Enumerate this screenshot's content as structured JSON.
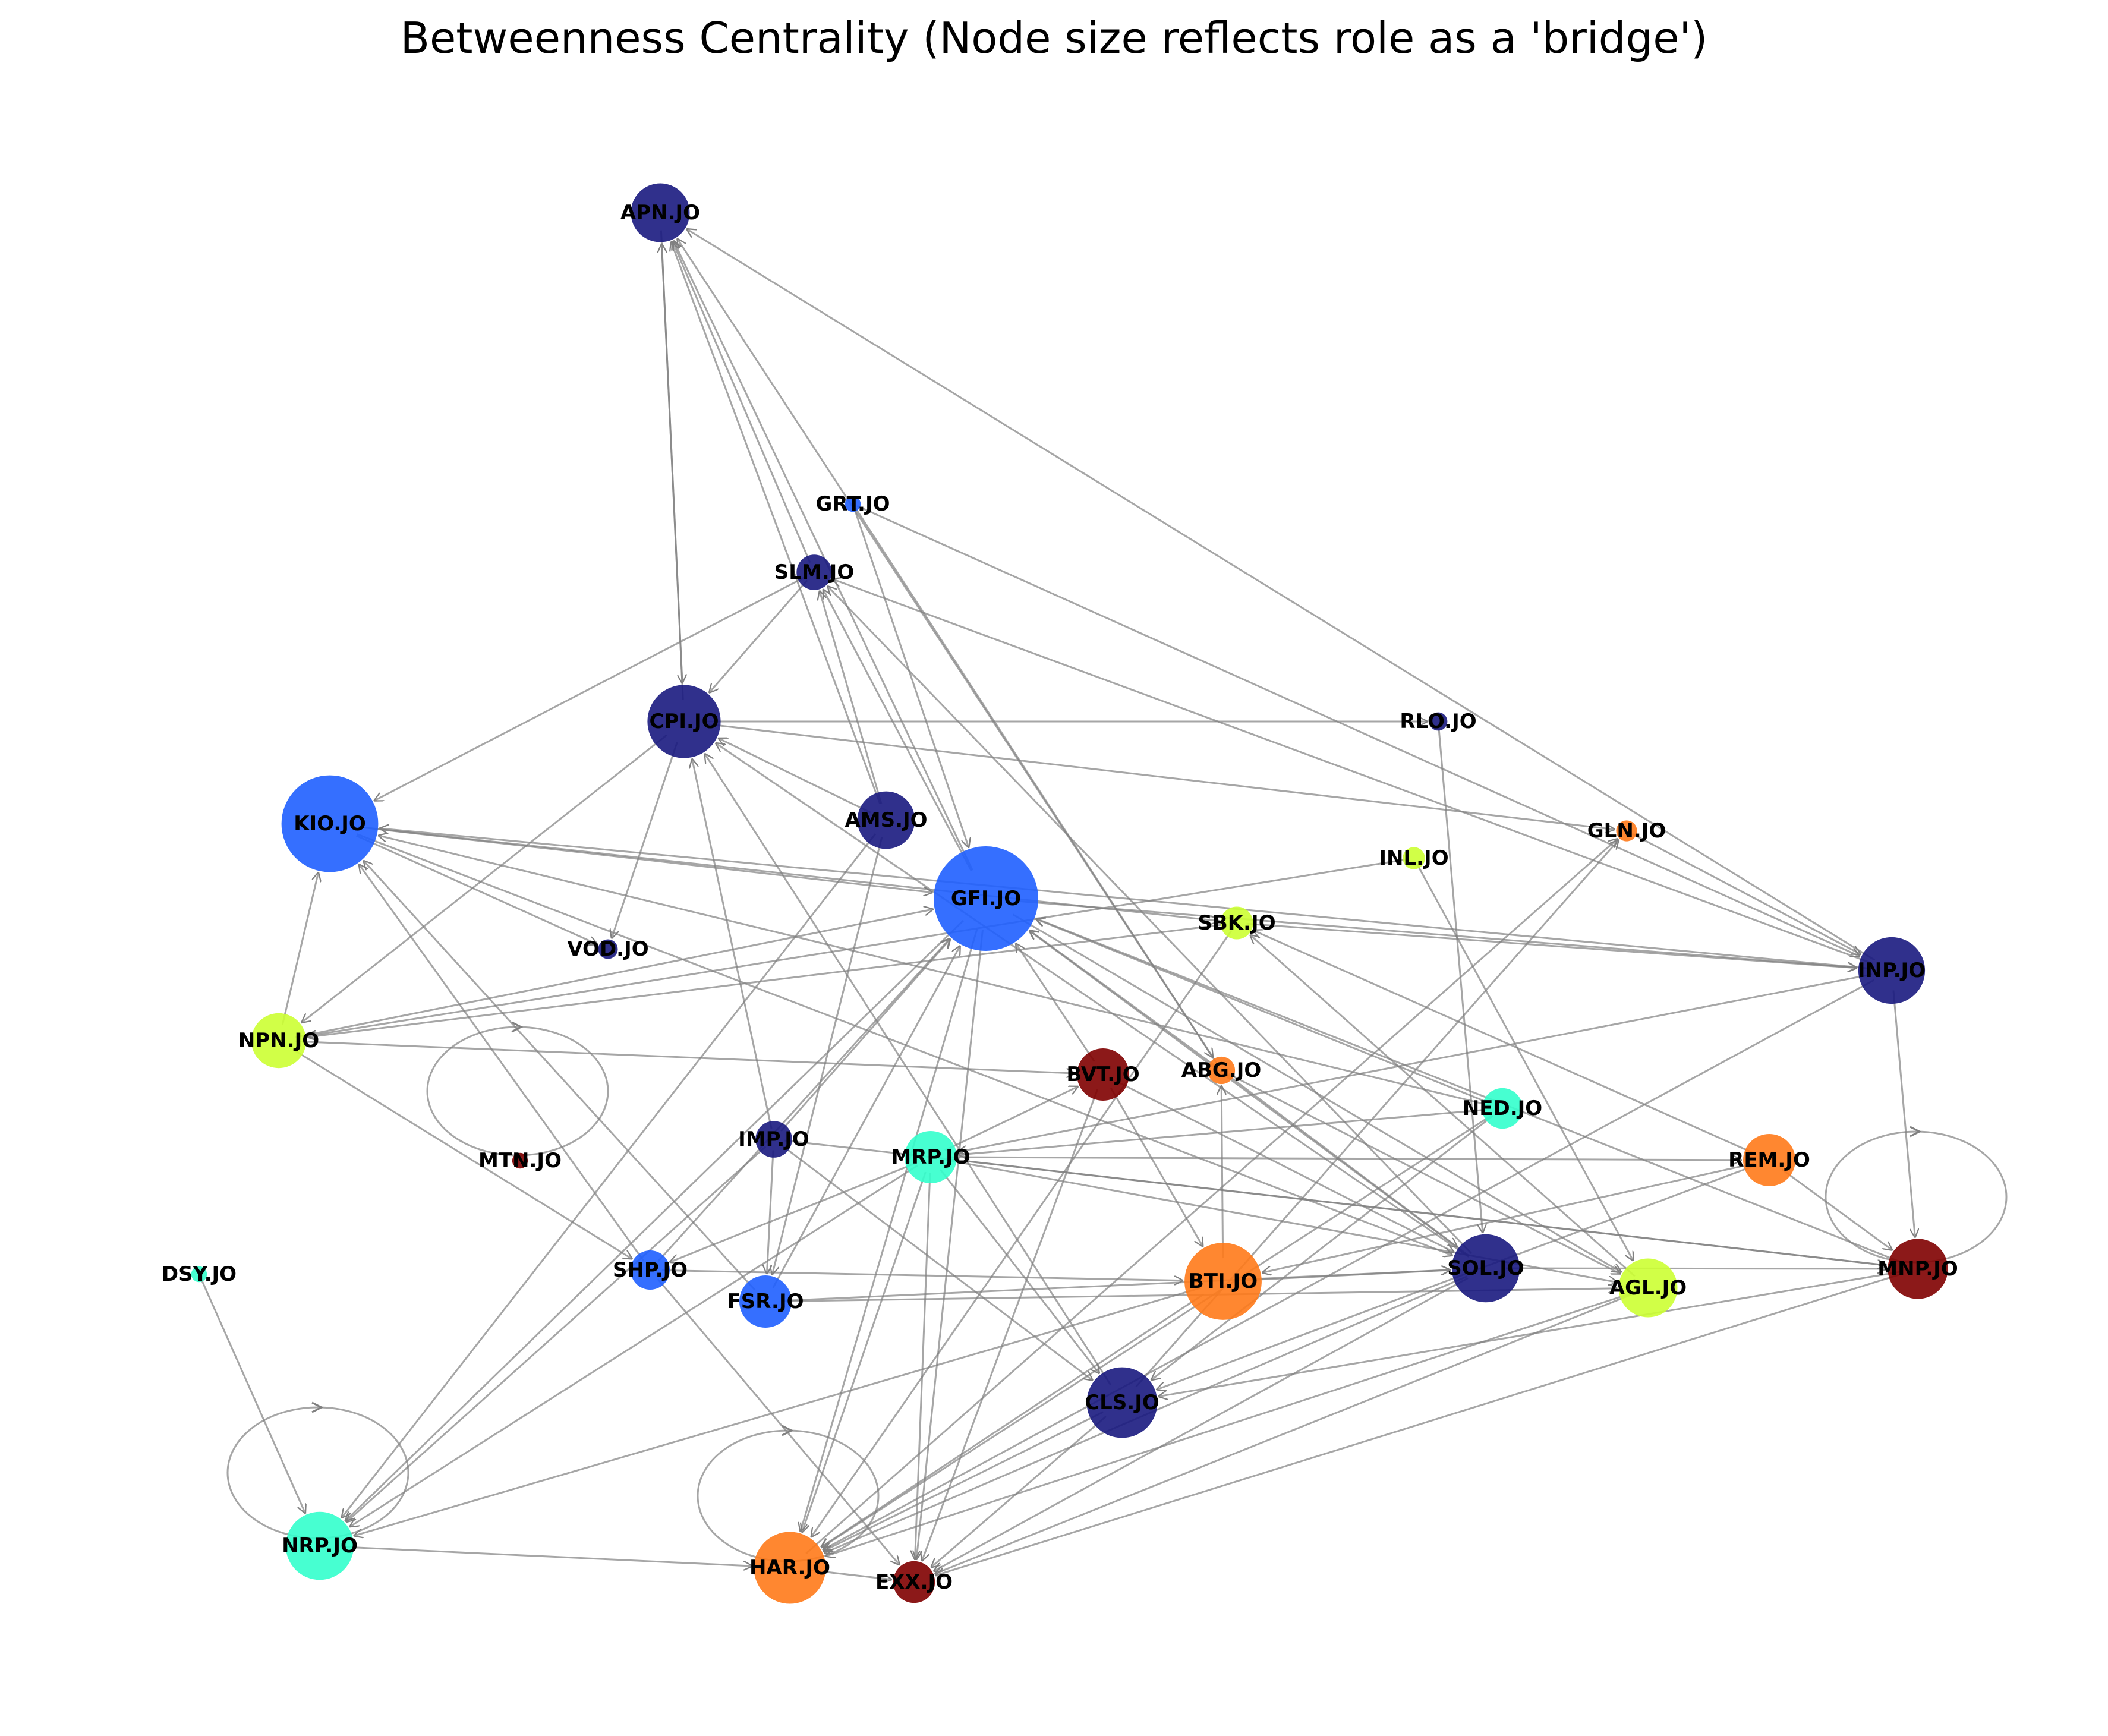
{
  "title": "Betweenness Centrality (Node size reflects role as a 'bridge')",
  "edge_color": "#808080",
  "palette": {
    "navy": "#1a1a80",
    "blue": "#1f5fff",
    "cyan": "#33ffcc",
    "lime": "#ccff33",
    "orange": "#ff7a1a",
    "maroon": "#800000"
  },
  "nodes": [
    {
      "id": "APN.JO",
      "label": "APN.JO",
      "color": "navy",
      "size": 0.45
    },
    {
      "id": "GRT.JO",
      "label": "GRT.JO",
      "color": "blue",
      "size": 0.12
    },
    {
      "id": "SLM.JO",
      "label": "SLM.JO",
      "color": "navy",
      "size": 0.27
    },
    {
      "id": "CPI.JO",
      "label": "CPI.JO",
      "color": "navy",
      "size": 0.56
    },
    {
      "id": "RLO.JO",
      "label": "RLO.JO",
      "color": "navy",
      "size": 0.14
    },
    {
      "id": "KIO.JO",
      "label": "KIO.JO",
      "color": "blue",
      "size": 0.74
    },
    {
      "id": "AMS.JO",
      "label": "AMS.JO",
      "color": "navy",
      "size": 0.44
    },
    {
      "id": "GLN.JO",
      "label": "GLN.JO",
      "color": "orange",
      "size": 0.16
    },
    {
      "id": "INL.JO",
      "label": "INL.JO",
      "color": "lime",
      "size": 0.17
    },
    {
      "id": "GFI.JO",
      "label": "GFI.JO",
      "color": "blue",
      "size": 0.8
    },
    {
      "id": "SBK.JO",
      "label": "SBK.JO",
      "color": "lime",
      "size": 0.25
    },
    {
      "id": "VOD.JO",
      "label": "VOD.JO",
      "color": "navy",
      "size": 0.15
    },
    {
      "id": "INP.JO",
      "label": "INP.JO",
      "color": "navy",
      "size": 0.51
    },
    {
      "id": "NPN.JO",
      "label": "NPN.JO",
      "color": "lime",
      "size": 0.42
    },
    {
      "id": "BVT.JO",
      "label": "BVT.JO",
      "color": "maroon",
      "size": 0.4
    },
    {
      "id": "ABG.JO",
      "label": "ABG.JO",
      "color": "orange",
      "size": 0.21
    },
    {
      "id": "NED.JO",
      "label": "NED.JO",
      "color": "cyan",
      "size": 0.31
    },
    {
      "id": "IMP.JO",
      "label": "IMP.JO",
      "color": "navy",
      "size": 0.28
    },
    {
      "id": "MRP.JO",
      "label": "MRP.JO",
      "color": "cyan",
      "size": 0.4
    },
    {
      "id": "MTN.JO",
      "label": "MTN.JO",
      "color": "maroon",
      "size": 0.12
    },
    {
      "id": "REM.JO",
      "label": "REM.JO",
      "color": "orange",
      "size": 0.4
    },
    {
      "id": "DSY.JO",
      "label": "DSY.JO",
      "color": "cyan",
      "size": 0.12
    },
    {
      "id": "SHP.JO",
      "label": "SHP.JO",
      "color": "blue",
      "size": 0.3
    },
    {
      "id": "FSR.JO",
      "label": "FSR.JO",
      "color": "blue",
      "size": 0.4
    },
    {
      "id": "BTI.JO",
      "label": "BTI.JO",
      "color": "orange",
      "size": 0.59
    },
    {
      "id": "SOL.JO",
      "label": "SOL.JO",
      "color": "navy",
      "size": 0.52
    },
    {
      "id": "AGL.JO",
      "label": "AGL.JO",
      "color": "lime",
      "size": 0.45
    },
    {
      "id": "MNP.JO",
      "label": "MNP.JO",
      "color": "maroon",
      "size": 0.46
    },
    {
      "id": "CLS.JO",
      "label": "CLS.JO",
      "color": "navy",
      "size": 0.54
    },
    {
      "id": "NRP.JO",
      "label": "NRP.JO",
      "color": "cyan",
      "size": 0.52
    },
    {
      "id": "HAR.JO",
      "label": "HAR.JO",
      "color": "orange",
      "size": 0.55
    },
    {
      "id": "EXX.JO",
      "label": "EXX.JO",
      "color": "maroon",
      "size": 0.32
    }
  ],
  "self_loops": [
    "MTN.JO",
    "MNP.JO",
    "NRP.JO",
    "HAR.JO"
  ],
  "edges": [
    [
      "CPI.JO",
      "APN.JO"
    ],
    [
      "APN.JO",
      "CPI.JO"
    ],
    [
      "AMS.JO",
      "APN.JO"
    ],
    [
      "GFI.JO",
      "APN.JO"
    ],
    [
      "SLM.JO",
      "APN.JO"
    ],
    [
      "INP.JO",
      "APN.JO"
    ],
    [
      "ABG.JO",
      "APN.JO"
    ],
    [
      "SLM.JO",
      "KIO.JO"
    ],
    [
      "SLM.JO",
      "CPI.JO"
    ],
    [
      "AMS.JO",
      "SLM.JO"
    ],
    [
      "GFI.JO",
      "SLM.JO"
    ],
    [
      "INP.JO",
      "SLM.JO"
    ],
    [
      "SOL.JO",
      "SLM.JO"
    ],
    [
      "GRT.JO",
      "ABG.JO"
    ],
    [
      "GRT.JO",
      "GFI.JO"
    ],
    [
      "GRT.JO",
      "INP.JO"
    ],
    [
      "CPI.JO",
      "RLO.JO"
    ],
    [
      "CPI.JO",
      "GLN.JO"
    ],
    [
      "CPI.JO",
      "VOD.JO"
    ],
    [
      "CPI.JO",
      "NPN.JO"
    ],
    [
      "IMP.JO",
      "CPI.JO"
    ],
    [
      "CLS.JO",
      "CPI.JO"
    ],
    [
      "AMS.JO",
      "CPI.JO"
    ],
    [
      "SOL.JO",
      "CPI.JO"
    ],
    [
      "RLO.JO",
      "SOL.JO"
    ],
    [
      "KIO.JO",
      "GFI.JO"
    ],
    [
      "KIO.JO",
      "SBK.JO"
    ],
    [
      "KIO.JO",
      "VOD.JO"
    ],
    [
      "KIO.JO",
      "SOL.JO"
    ],
    [
      "NPN.JO",
      "KIO.JO"
    ],
    [
      "SHP.JO",
      "KIO.JO"
    ],
    [
      "FSR.JO",
      "KIO.JO"
    ],
    [
      "INP.JO",
      "KIO.JO"
    ],
    [
      "NED.JO",
      "KIO.JO"
    ],
    [
      "AMS.JO",
      "NRP.JO"
    ],
    [
      "AMS.JO",
      "FSR.JO"
    ],
    [
      "GLN.JO",
      "INP.JO"
    ],
    [
      "CLS.JO",
      "GLN.JO"
    ],
    [
      "HAR.JO",
      "GLN.JO"
    ],
    [
      "INL.JO",
      "NPN.JO"
    ],
    [
      "INL.JO",
      "AGL.JO"
    ],
    [
      "GFI.JO",
      "INP.JO"
    ],
    [
      "GFI.JO",
      "HAR.JO"
    ],
    [
      "GFI.JO",
      "EXX.JO"
    ],
    [
      "GFI.JO",
      "NRP.JO"
    ],
    [
      "GFI.JO",
      "AGL.JO"
    ],
    [
      "NPN.JO",
      "GFI.JO"
    ],
    [
      "BVT.JO",
      "GFI.JO"
    ],
    [
      "IMP.JO",
      "GFI.JO"
    ],
    [
      "ABG.JO",
      "GFI.JO"
    ],
    [
      "MNP.JO",
      "GFI.JO"
    ],
    [
      "NED.JO",
      "GFI.JO"
    ],
    [
      "SOL.JO",
      "GFI.JO"
    ],
    [
      "SHP.JO",
      "GFI.JO"
    ],
    [
      "FSR.JO",
      "GFI.JO"
    ],
    [
      "SBK.JO",
      "INP.JO"
    ],
    [
      "SBK.JO",
      "NPN.JO"
    ],
    [
      "SBK.JO",
      "HAR.JO"
    ],
    [
      "REM.JO",
      "SBK.JO"
    ],
    [
      "AGL.JO",
      "SBK.JO"
    ],
    [
      "INP.JO",
      "MNP.JO"
    ],
    [
      "INP.JO",
      "MRP.JO"
    ],
    [
      "INP.JO",
      "HAR.JO"
    ],
    [
      "NPN.JO",
      "BVT.JO"
    ],
    [
      "NPN.JO",
      "SHP.JO"
    ],
    [
      "BVT.JO",
      "SOL.JO"
    ],
    [
      "BVT.JO",
      "EXX.JO"
    ],
    [
      "BVT.JO",
      "BTI.JO"
    ],
    [
      "ABG.JO",
      "SOL.JO"
    ],
    [
      "ABG.JO",
      "AGL.JO"
    ],
    [
      "BTI.JO",
      "ABG.JO"
    ],
    [
      "NED.JO",
      "MRP.JO"
    ],
    [
      "NED.JO",
      "CLS.JO"
    ],
    [
      "NED.JO",
      "HAR.JO"
    ],
    [
      "IMP.JO",
      "FSR.JO"
    ],
    [
      "IMP.JO",
      "MNP.JO"
    ],
    [
      "IMP.JO",
      "CLS.JO"
    ],
    [
      "IMP.JO",
      "NRP.JO"
    ],
    [
      "MRP.JO",
      "BVT.JO"
    ],
    [
      "MRP.JO",
      "REM.JO"
    ],
    [
      "MRP.JO",
      "AGL.JO"
    ],
    [
      "MRP.JO",
      "MNP.JO"
    ],
    [
      "MRP.JO",
      "CLS.JO"
    ],
    [
      "MRP.JO",
      "HAR.JO"
    ],
    [
      "MRP.JO",
      "SHP.JO"
    ],
    [
      "MRP.JO",
      "NRP.JO"
    ],
    [
      "MRP.JO",
      "EXX.JO"
    ],
    [
      "REM.JO",
      "BTI.JO"
    ],
    [
      "REM.JO",
      "CLS.JO"
    ],
    [
      "REM.JO",
      "MNP.JO"
    ],
    [
      "DSY.JO",
      "NRP.JO"
    ],
    [
      "SHP.JO",
      "BTI.JO"
    ],
    [
      "SHP.JO",
      "EXX.JO"
    ],
    [
      "FSR.JO",
      "AGL.JO"
    ],
    [
      "FSR.JO",
      "SOL.JO"
    ],
    [
      "BTI.JO",
      "SOL.JO"
    ],
    [
      "BTI.JO",
      "NRP.JO"
    ],
    [
      "BTI.JO",
      "HAR.JO"
    ],
    [
      "SOL.JO",
      "HAR.JO"
    ],
    [
      "SOL.JO",
      "EXX.JO"
    ],
    [
      "SOL.JO",
      "MNP.JO"
    ],
    [
      "AGL.JO",
      "EXX.JO"
    ],
    [
      "AGL.JO",
      "HAR.JO"
    ],
    [
      "MNP.JO",
      "EXX.JO"
    ],
    [
      "MNP.JO",
      "CLS.JO"
    ],
    [
      "CLS.JO",
      "HAR.JO"
    ],
    [
      "CLS.JO",
      "EXX.JO"
    ],
    [
      "NRP.JO",
      "HAR.JO"
    ],
    [
      "HAR.JO",
      "EXX.JO"
    ]
  ]
}
